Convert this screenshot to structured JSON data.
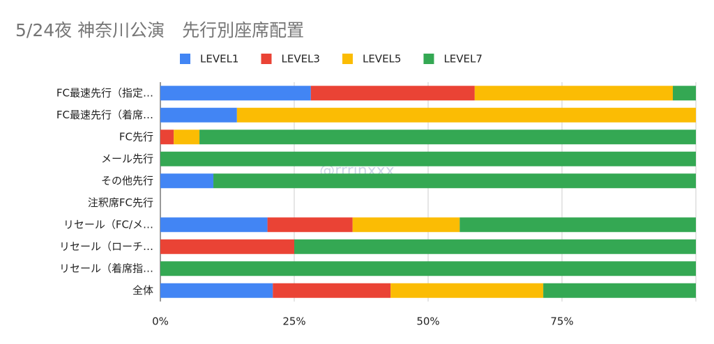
{
  "chart_data": {
    "type": "stacked-bar-horizontal",
    "title": "5/24夜 神奈川公演　先行別座席配置",
    "watermark": "@rrrinxxx",
    "categories": [
      "FC最速先行（指定…",
      "FC最速先行（着席…",
      "FC先行",
      "メール先行",
      "その他先行",
      "注釈席FC先行",
      "リセール（FC/メ…",
      "リセール（ローチ…",
      "リセール（着席指…",
      "全体"
    ],
    "series": [
      {
        "name": "LEVEL1",
        "color": "#4285f4",
        "values": [
          28.1,
          14.3,
          null,
          null,
          9.9,
          null,
          20,
          null,
          null,
          21
        ]
      },
      {
        "name": "LEVEL3",
        "color": "#ea4335",
        "values": [
          30.6,
          null,
          2.5,
          null,
          null,
          null,
          15.9,
          25,
          null,
          22
        ]
      },
      {
        "name": "LEVEL5",
        "color": "#fbbc04",
        "values": [
          37,
          85.7,
          4.8,
          null,
          null,
          null,
          20,
          null,
          null,
          28.5
        ]
      },
      {
        "name": "LEVEL7",
        "color": "#34a853",
        "values": [
          4.3,
          null,
          92.7,
          100,
          90.1,
          null,
          44.1,
          75,
          100,
          28.5
        ]
      }
    ],
    "xlim": [
      0,
      100
    ],
    "xticks": [
      {
        "value": 0,
        "label": "0%"
      },
      {
        "value": 25,
        "label": "25%"
      },
      {
        "value": 50,
        "label": "50%"
      },
      {
        "value": 75,
        "label": "75%"
      }
    ],
    "grid": true,
    "legend": "top"
  }
}
